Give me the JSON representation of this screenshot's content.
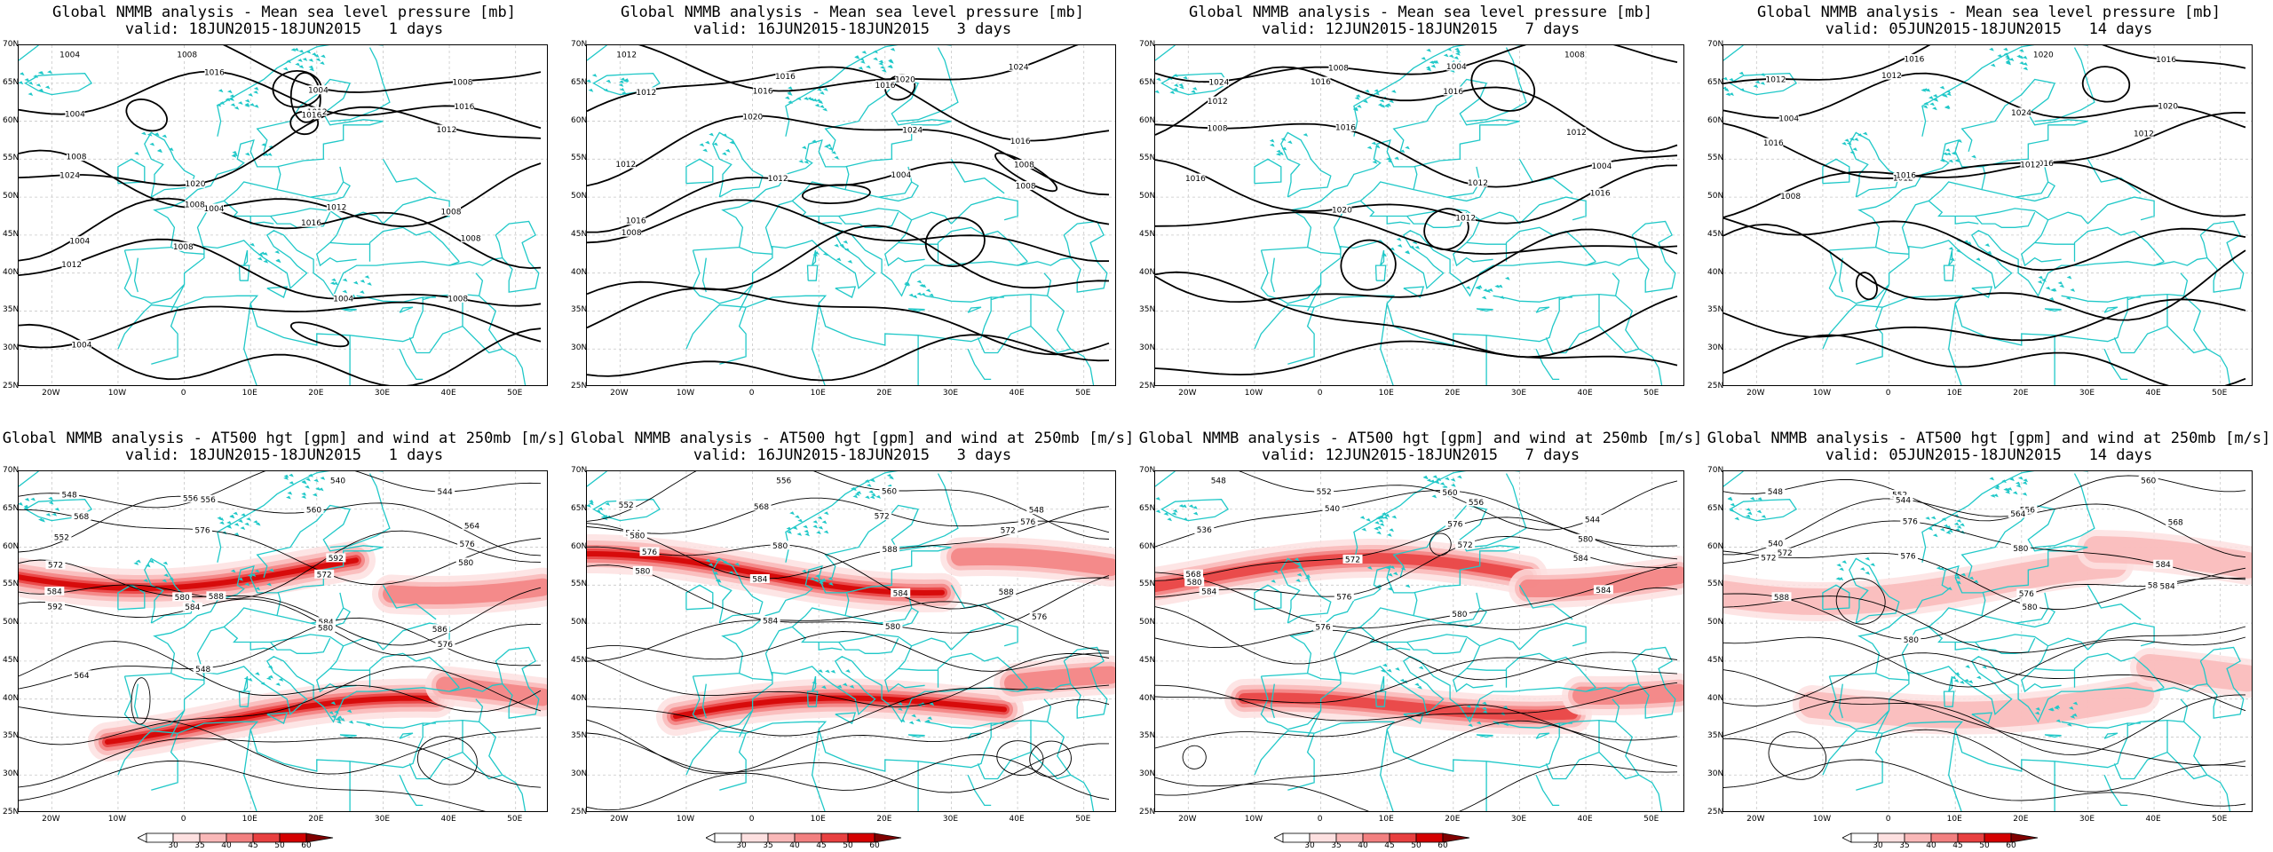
{
  "figure": {
    "rows": [
      {
        "kind": "mslp",
        "panels": [
          {
            "title": "Global NMMB analysis - Mean sea level pressure [mb]",
            "subtitle": "valid: 18JUN2015-18JUN2015   1 days"
          },
          {
            "title": "Global NMMB analysis - Mean sea level pressure [mb]",
            "subtitle": "valid: 16JUN2015-18JUN2015   3 days"
          },
          {
            "title": "Global NMMB analysis - Mean sea level pressure [mb]",
            "subtitle": "valid: 12JUN2015-18JUN2015   7 days"
          },
          {
            "title": "Global NMMB analysis - Mean sea level pressure [mb]",
            "subtitle": "valid: 05JUN2015-18JUN2015   14 days"
          }
        ]
      },
      {
        "kind": "z500",
        "panels": [
          {
            "title": "Global NMMB analysis - AT500 hgt [gpm] and wind at 250mb [m/s]",
            "subtitle": "valid: 18JUN2015-18JUN2015   1 days"
          },
          {
            "title": "Global NMMB analysis - AT500 hgt [gpm] and wind at 250mb [m/s]",
            "subtitle": "valid: 16JUN2015-18JUN2015   3 days"
          },
          {
            "title": "Global NMMB analysis - AT500 hgt [gpm] and wind at 250mb [m/s]",
            "subtitle": "valid: 12JUN2015-18JUN2015   7 days"
          },
          {
            "title": "Global NMMB analysis - AT500 hgt [gpm] and wind at 250mb [m/s]",
            "subtitle": "valid: 05JUN2015-18JUN2015   14 days"
          }
        ]
      }
    ],
    "lat_labels": [
      "70N",
      "65N",
      "60N",
      "55N",
      "50N",
      "45N",
      "40N",
      "35N",
      "30N",
      "25N"
    ],
    "lon_labels": [
      "20W",
      "10W",
      "0",
      "10E",
      "20E",
      "30E",
      "40E",
      "50E"
    ],
    "colorbar": {
      "levels": [
        "30",
        "35",
        "40",
        "45",
        "50",
        "60"
      ],
      "colors": [
        "#ffffff",
        "#fde0e0",
        "#f9b8b8",
        "#f28080",
        "#e84040",
        "#d40000",
        "#800000"
      ]
    },
    "colors": {
      "coast": "#20c8c8",
      "contour": "#000000",
      "grid": "#c8c8c8"
    },
    "mslp_labels": [
      [
        "1004",
        "1008",
        "1004",
        "1008",
        "1004",
        "1016",
        "1012",
        "1016",
        "1024",
        "1020",
        "1016",
        "1012",
        "1008",
        "1004",
        "1012",
        "1008",
        "1004",
        "1008",
        "1016",
        "1008",
        "1012",
        "1008",
        "1004",
        "1008",
        "1004"
      ],
      [
        "1012",
        "1016",
        "1020",
        "1024",
        "1012",
        "1016",
        "1016",
        "1016",
        "1012",
        "1020",
        "1024",
        "1008",
        "1016",
        "1012",
        "1004",
        "1008",
        "1008"
      ],
      [
        "1024",
        "1008",
        "1004",
        "1008",
        "1012",
        "1016",
        "1016",
        "1012",
        "1008",
        "1016",
        "1012",
        "1004",
        "1016",
        "1020",
        "1012",
        "1016"
      ],
      [
        "1012",
        "1016",
        "1020",
        "1016",
        "1004",
        "1012",
        "1024",
        "1020",
        "1016",
        "1012",
        "1016",
        "1012",
        "1008",
        "1016",
        "1012"
      ]
    ],
    "z500_labels": [
      [
        "548",
        "556",
        "540",
        "544",
        "552",
        "556",
        "560",
        "564",
        "568",
        "576",
        "572",
        "580",
        "584",
        "588",
        "592",
        "576",
        "572",
        "580",
        "584",
        "586",
        "592",
        "584",
        "580",
        "576",
        "564",
        "548"
      ],
      [
        "552",
        "556",
        "560",
        "548",
        "544",
        "568",
        "572",
        "576",
        "580",
        "584",
        "588",
        "572",
        "576",
        "580",
        "584",
        "588",
        "580",
        "584",
        "580",
        "576"
      ],
      [
        "548",
        "552",
        "556",
        "544",
        "536",
        "540",
        "560",
        "564",
        "568",
        "572",
        "576",
        "580",
        "584",
        "576",
        "572",
        "584",
        "580",
        "576",
        "580",
        "584"
      ],
      [
        "548",
        "552",
        "556",
        "560",
        "540",
        "544",
        "564",
        "568",
        "572",
        "576",
        "580",
        "584",
        "572",
        "576",
        "580",
        "584",
        "588",
        "580",
        "576",
        "584"
      ]
    ]
  }
}
